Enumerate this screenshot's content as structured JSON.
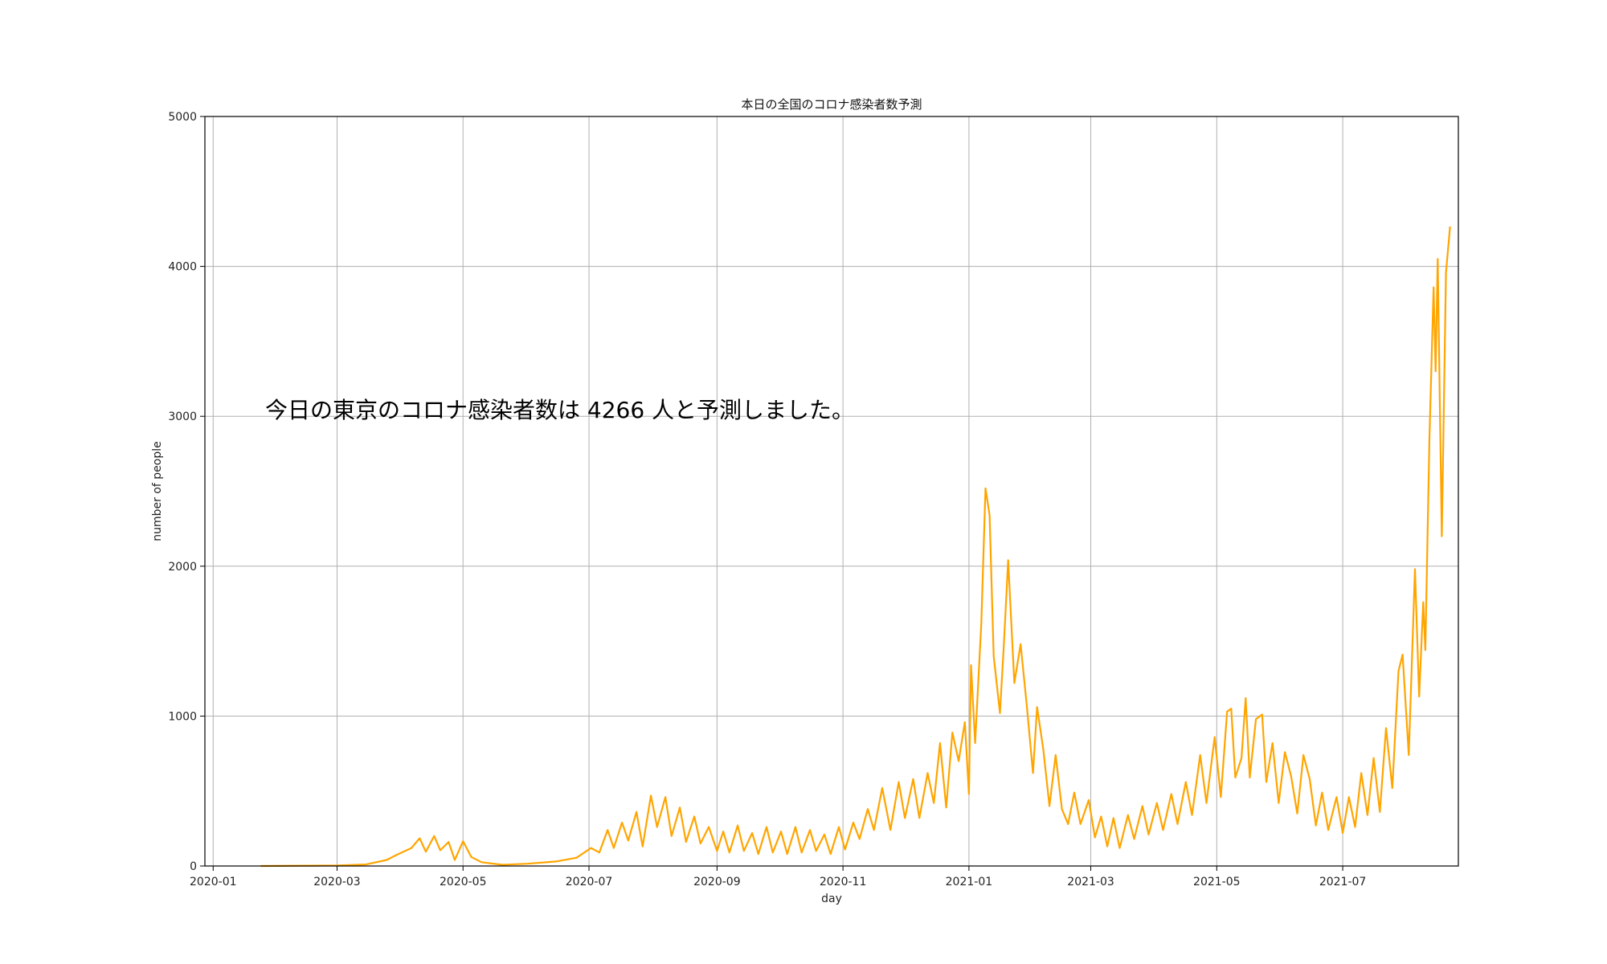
{
  "chart_data": {
    "type": "line",
    "title": "本日の全国のコロナ感染者数予測",
    "xlabel": "day",
    "ylabel": "number of people",
    "xlim": [
      "2019-12-28",
      "2021-08-26"
    ],
    "ylim": [
      0,
      5000
    ],
    "grid": true,
    "annotation": "今日の東京のコロナ感染者数は 4266 人と予測しました。",
    "x_ticks": [
      "2020-01",
      "2020-03",
      "2020-05",
      "2020-07",
      "2020-09",
      "2020-11",
      "2021-01",
      "2021-03",
      "2021-05",
      "2021-07"
    ],
    "y_ticks": [
      "0",
      "1000",
      "2000",
      "3000",
      "4000",
      "5000"
    ],
    "series": [
      {
        "color": "#ffa500",
        "points": [
          [
            "2020-01-24",
            0
          ],
          [
            "2020-02-15",
            2
          ],
          [
            "2020-03-01",
            3
          ],
          [
            "2020-03-15",
            10
          ],
          [
            "2020-03-25",
            40
          ],
          [
            "2020-03-30",
            75
          ],
          [
            "2020-04-03",
            100
          ],
          [
            "2020-04-06",
            120
          ],
          [
            "2020-04-10",
            185
          ],
          [
            "2020-04-13",
            95
          ],
          [
            "2020-04-17",
            200
          ],
          [
            "2020-04-20",
            105
          ],
          [
            "2020-04-24",
            160
          ],
          [
            "2020-04-27",
            40
          ],
          [
            "2020-05-01",
            165
          ],
          [
            "2020-05-05",
            60
          ],
          [
            "2020-05-10",
            25
          ],
          [
            "2020-05-20",
            8
          ],
          [
            "2020-06-01",
            15
          ],
          [
            "2020-06-15",
            30
          ],
          [
            "2020-06-25",
            55
          ],
          [
            "2020-07-02",
            120
          ],
          [
            "2020-07-06",
            90
          ],
          [
            "2020-07-10",
            240
          ],
          [
            "2020-07-13",
            120
          ],
          [
            "2020-07-17",
            290
          ],
          [
            "2020-07-20",
            170
          ],
          [
            "2020-07-24",
            360
          ],
          [
            "2020-07-27",
            130
          ],
          [
            "2020-07-31",
            470
          ],
          [
            "2020-08-03",
            260
          ],
          [
            "2020-08-07",
            460
          ],
          [
            "2020-08-10",
            200
          ],
          [
            "2020-08-14",
            390
          ],
          [
            "2020-08-17",
            160
          ],
          [
            "2020-08-21",
            330
          ],
          [
            "2020-08-24",
            150
          ],
          [
            "2020-08-28",
            260
          ],
          [
            "2020-09-01",
            100
          ],
          [
            "2020-09-04",
            230
          ],
          [
            "2020-09-07",
            90
          ],
          [
            "2020-09-11",
            270
          ],
          [
            "2020-09-14",
            100
          ],
          [
            "2020-09-18",
            220
          ],
          [
            "2020-09-21",
            80
          ],
          [
            "2020-09-25",
            260
          ],
          [
            "2020-09-28",
            90
          ],
          [
            "2020-10-02",
            230
          ],
          [
            "2020-10-05",
            80
          ],
          [
            "2020-10-09",
            260
          ],
          [
            "2020-10-12",
            90
          ],
          [
            "2020-10-16",
            240
          ],
          [
            "2020-10-19",
            100
          ],
          [
            "2020-10-23",
            210
          ],
          [
            "2020-10-26",
            80
          ],
          [
            "2020-10-30",
            260
          ],
          [
            "2020-11-02",
            110
          ],
          [
            "2020-11-06",
            290
          ],
          [
            "2020-11-09",
            180
          ],
          [
            "2020-11-13",
            380
          ],
          [
            "2020-11-16",
            240
          ],
          [
            "2020-11-20",
            520
          ],
          [
            "2020-11-24",
            240
          ],
          [
            "2020-11-28",
            560
          ],
          [
            "2020-12-01",
            320
          ],
          [
            "2020-12-05",
            580
          ],
          [
            "2020-12-08",
            320
          ],
          [
            "2020-12-12",
            620
          ],
          [
            "2020-12-15",
            420
          ],
          [
            "2020-12-18",
            820
          ],
          [
            "2020-12-21",
            390
          ],
          [
            "2020-12-24",
            890
          ],
          [
            "2020-12-27",
            700
          ],
          [
            "2020-12-30",
            960
          ],
          [
            "2021-01-01",
            480
          ],
          [
            "2021-01-02",
            1340
          ],
          [
            "2021-01-04",
            820
          ],
          [
            "2021-01-07",
            1620
          ],
          [
            "2021-01-09",
            2520
          ],
          [
            "2021-01-11",
            2340
          ],
          [
            "2021-01-13",
            1400
          ],
          [
            "2021-01-16",
            1020
          ],
          [
            "2021-01-18",
            1500
          ],
          [
            "2021-01-20",
            2040
          ],
          [
            "2021-01-23",
            1220
          ],
          [
            "2021-01-26",
            1480
          ],
          [
            "2021-01-29",
            1070
          ],
          [
            "2021-02-01",
            620
          ],
          [
            "2021-02-03",
            1060
          ],
          [
            "2021-02-06",
            780
          ],
          [
            "2021-02-09",
            400
          ],
          [
            "2021-02-12",
            740
          ],
          [
            "2021-02-15",
            380
          ],
          [
            "2021-02-18",
            280
          ],
          [
            "2021-02-21",
            490
          ],
          [
            "2021-02-24",
            280
          ],
          [
            "2021-02-28",
            440
          ],
          [
            "2021-03-03",
            190
          ],
          [
            "2021-03-06",
            330
          ],
          [
            "2021-03-09",
            130
          ],
          [
            "2021-03-12",
            320
          ],
          [
            "2021-03-15",
            120
          ],
          [
            "2021-03-19",
            340
          ],
          [
            "2021-03-22",
            180
          ],
          [
            "2021-03-26",
            400
          ],
          [
            "2021-03-29",
            210
          ],
          [
            "2021-04-02",
            420
          ],
          [
            "2021-04-05",
            240
          ],
          [
            "2021-04-09",
            480
          ],
          [
            "2021-04-12",
            280
          ],
          [
            "2021-04-16",
            560
          ],
          [
            "2021-04-19",
            340
          ],
          [
            "2021-04-23",
            740
          ],
          [
            "2021-04-26",
            420
          ],
          [
            "2021-04-30",
            860
          ],
          [
            "2021-05-03",
            460
          ],
          [
            "2021-05-06",
            1030
          ],
          [
            "2021-05-08",
            1050
          ],
          [
            "2021-05-10",
            590
          ],
          [
            "2021-05-13",
            720
          ],
          [
            "2021-05-15",
            1120
          ],
          [
            "2021-05-17",
            590
          ],
          [
            "2021-05-20",
            980
          ],
          [
            "2021-05-23",
            1010
          ],
          [
            "2021-05-25",
            560
          ],
          [
            "2021-05-28",
            820
          ],
          [
            "2021-05-31",
            420
          ],
          [
            "2021-06-03",
            760
          ],
          [
            "2021-06-06",
            600
          ],
          [
            "2021-06-09",
            350
          ],
          [
            "2021-06-12",
            740
          ],
          [
            "2021-06-15",
            580
          ],
          [
            "2021-06-18",
            270
          ],
          [
            "2021-06-21",
            490
          ],
          [
            "2021-06-24",
            240
          ],
          [
            "2021-06-28",
            460
          ],
          [
            "2021-07-01",
            220
          ],
          [
            "2021-07-04",
            460
          ],
          [
            "2021-07-07",
            260
          ],
          [
            "2021-07-10",
            620
          ],
          [
            "2021-07-13",
            340
          ],
          [
            "2021-07-16",
            720
          ],
          [
            "2021-07-19",
            360
          ],
          [
            "2021-07-22",
            920
          ],
          [
            "2021-07-25",
            520
          ],
          [
            "2021-07-28",
            1300
          ],
          [
            "2021-07-30",
            1410
          ],
          [
            "2021-08-02",
            740
          ],
          [
            "2021-08-05",
            1980
          ],
          [
            "2021-08-07",
            1130
          ],
          [
            "2021-08-09",
            1760
          ],
          [
            "2021-08-10",
            1440
          ],
          [
            "2021-08-12",
            2850
          ],
          [
            "2021-08-14",
            3860
          ],
          [
            "2021-08-15",
            3300
          ],
          [
            "2021-08-16",
            4050
          ],
          [
            "2021-08-18",
            2200
          ],
          [
            "2021-08-20",
            3960
          ],
          [
            "2021-08-22",
            4266
          ]
        ]
      }
    ]
  }
}
